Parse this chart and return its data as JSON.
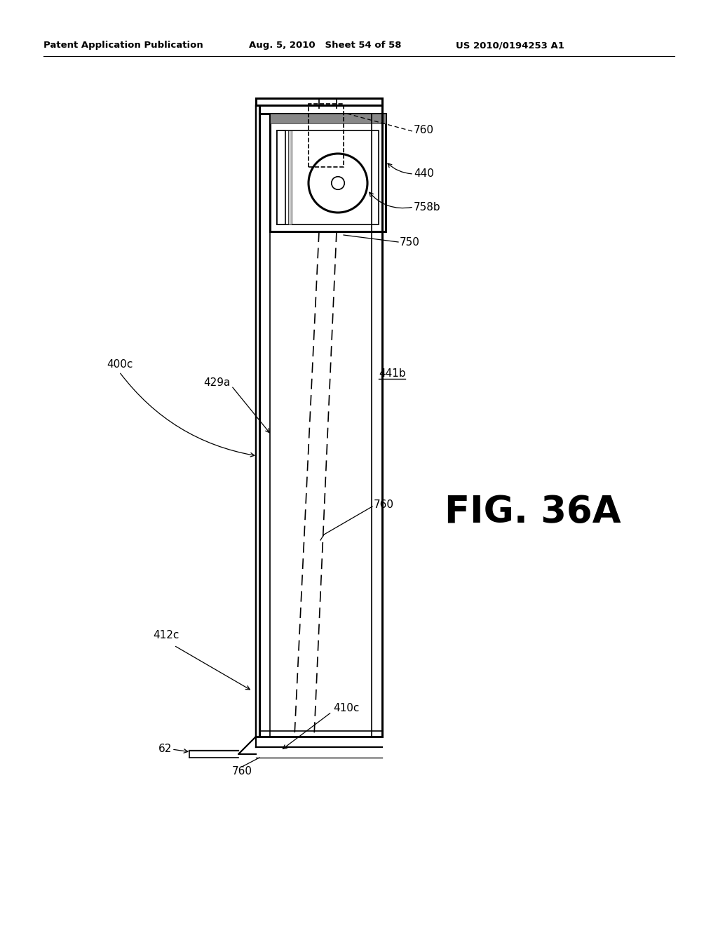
{
  "bg_color": "#ffffff",
  "header_left": "Patent Application Publication",
  "header_mid": "Aug. 5, 2010   Sheet 54 of 58",
  "header_right": "US 2010/0194253 A1",
  "fig_label": "FIG. 36A",
  "labels": {
    "760_top": "760",
    "440": "440",
    "758b": "758b",
    "750": "750",
    "441b": "441b",
    "429a": "429a",
    "400c": "400c",
    "760_mid": "760",
    "412c": "412c",
    "410c": "410c",
    "62": "62",
    "760_bot": "760"
  }
}
